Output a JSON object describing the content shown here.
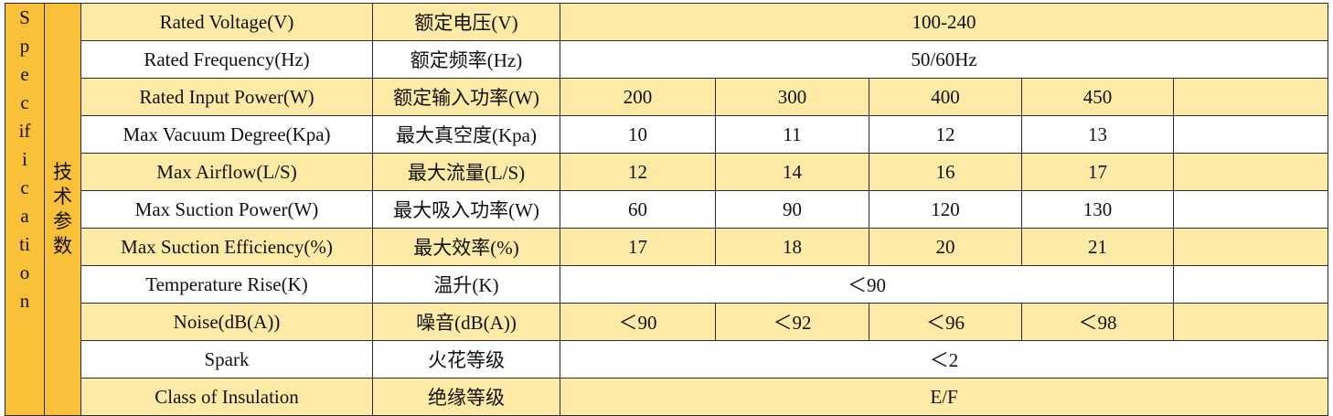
{
  "table": {
    "side_en": "Specification",
    "side_zh": "技术参数",
    "rows": [
      {
        "en": "Rated Voltage(V)",
        "zh": "额定电压(V)",
        "values": [
          "100-240"
        ]
      },
      {
        "en": "Rated Frequency(Hz)",
        "zh": "额定频率(Hz)",
        "values": [
          "50/60Hz"
        ]
      },
      {
        "en": "Rated Input Power(W)",
        "zh": "额定输入功率(W)",
        "values": [
          "200",
          "300",
          "400",
          "450"
        ]
      },
      {
        "en": "Max Vacuum Degree(Kpa)",
        "zh": "最大真空度(Kpa)",
        "values": [
          "10",
          "11",
          "12",
          "13"
        ]
      },
      {
        "en": "Max Airflow(L/S)",
        "zh": "最大流量(L/S)",
        "values": [
          "12",
          "14",
          "16",
          "17"
        ]
      },
      {
        "en": "Max Suction Power(W)",
        "zh": "最大吸入功率(W)",
        "values": [
          "60",
          "90",
          "120",
          "130"
        ]
      },
      {
        "en": "Max Suction Efficiency(%)",
        "zh": "最大效率(%)",
        "values": [
          "17",
          "18",
          "20",
          "21"
        ]
      },
      {
        "en": "Temperature Rise(K)",
        "zh": "温升(K)",
        "values": [
          "＜90"
        ]
      },
      {
        "en": "Noise(dB(A))",
        "zh": "噪音(dB(A))",
        "values": [
          "＜90",
          "＜92",
          "＜96",
          "＜98"
        ]
      },
      {
        "en": "Spark",
        "zh": "火花等级",
        "values": [
          "＜2"
        ]
      },
      {
        "en": "Class of Insulation",
        "zh": "绝缘等级",
        "values": [
          "E/F"
        ]
      }
    ]
  }
}
